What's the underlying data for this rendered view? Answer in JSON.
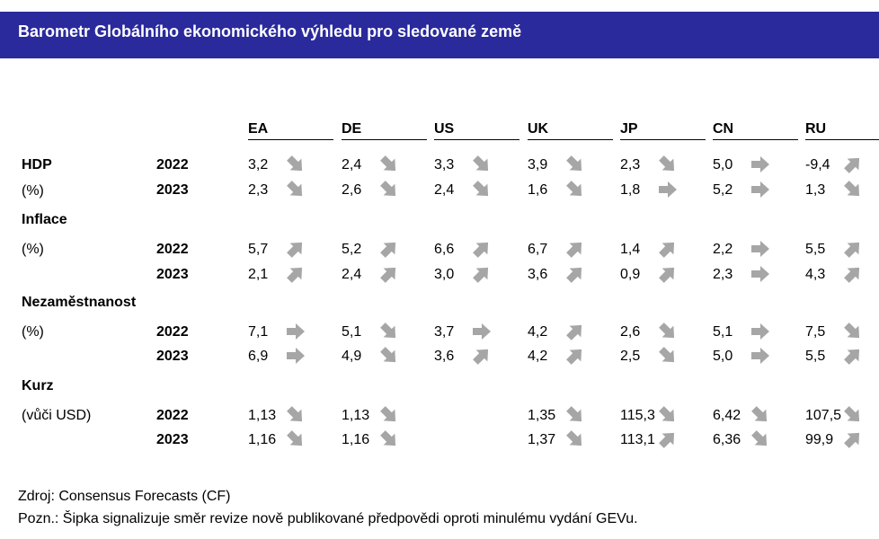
{
  "title": "Barometr Globálního ekonomického výhledu pro sledované země",
  "columns": [
    "EA",
    "DE",
    "US",
    "UK",
    "JP",
    "CN",
    "RU"
  ],
  "sections": [
    {
      "label": "HDP",
      "sub": "(%)",
      "first_row_offset": 0,
      "rows": [
        {
          "year": "2022",
          "cells": [
            {
              "v": "3,2",
              "a": "down"
            },
            {
              "v": "2,4",
              "a": "down"
            },
            {
              "v": "3,3",
              "a": "down"
            },
            {
              "v": "3,9",
              "a": "down"
            },
            {
              "v": "2,3",
              "a": "down"
            },
            {
              "v": "5,0",
              "a": "right"
            },
            {
              "v": "-9,4",
              "a": "up"
            }
          ]
        },
        {
          "year": "2023",
          "cells": [
            {
              "v": "2,3",
              "a": "down"
            },
            {
              "v": "2,6",
              "a": "down"
            },
            {
              "v": "2,4",
              "a": "down"
            },
            {
              "v": "1,6",
              "a": "down"
            },
            {
              "v": "1,8",
              "a": "right"
            },
            {
              "v": "5,2",
              "a": "right"
            },
            {
              "v": "1,3",
              "a": "down"
            }
          ]
        }
      ]
    },
    {
      "label": "Inflace",
      "sub": "(%)",
      "rows": [
        {
          "year": "2022",
          "cells": [
            {
              "v": "5,7",
              "a": "up"
            },
            {
              "v": "5,2",
              "a": "up"
            },
            {
              "v": "6,6",
              "a": "up"
            },
            {
              "v": "6,7",
              "a": "up"
            },
            {
              "v": "1,4",
              "a": "up"
            },
            {
              "v": "2,2",
              "a": "right"
            },
            {
              "v": "5,5",
              "a": "up"
            }
          ]
        },
        {
          "year": "2023",
          "cells": [
            {
              "v": "2,1",
              "a": "up"
            },
            {
              "v": "2,4",
              "a": "up"
            },
            {
              "v": "3,0",
              "a": "up"
            },
            {
              "v": "3,6",
              "a": "up"
            },
            {
              "v": "0,9",
              "a": "up"
            },
            {
              "v": "2,3",
              "a": "right"
            },
            {
              "v": "4,3",
              "a": "up"
            }
          ]
        }
      ]
    },
    {
      "label": "Nezaměstnanost",
      "sub": "(%)",
      "rows": [
        {
          "year": "2022",
          "cells": [
            {
              "v": "7,1",
              "a": "right"
            },
            {
              "v": "5,1",
              "a": "down"
            },
            {
              "v": "3,7",
              "a": "right"
            },
            {
              "v": "4,2",
              "a": "up"
            },
            {
              "v": "2,6",
              "a": "down"
            },
            {
              "v": "5,1",
              "a": "right"
            },
            {
              "v": "7,5",
              "a": "down"
            }
          ]
        },
        {
          "year": "2023",
          "cells": [
            {
              "v": "6,9",
              "a": "right"
            },
            {
              "v": "4,9",
              "a": "down"
            },
            {
              "v": "3,6",
              "a": "up"
            },
            {
              "v": "4,2",
              "a": "up"
            },
            {
              "v": "2,5",
              "a": "down"
            },
            {
              "v": "5,0",
              "a": "right"
            },
            {
              "v": "5,5",
              "a": "up"
            }
          ]
        }
      ]
    },
    {
      "label": "Kurz",
      "sub": "(vůči USD)",
      "rows": [
        {
          "year": "2022",
          "cells": [
            {
              "v": "1,13",
              "a": "down"
            },
            {
              "v": "1,13",
              "a": "down"
            },
            {
              "v": "",
              "a": ""
            },
            {
              "v": "1,35",
              "a": "down"
            },
            {
              "v": "115,3",
              "a": "down"
            },
            {
              "v": "6,42",
              "a": "down"
            },
            {
              "v": "107,5",
              "a": "down"
            }
          ]
        },
        {
          "year": "2023",
          "cells": [
            {
              "v": "1,16",
              "a": "down"
            },
            {
              "v": "1,16",
              "a": "down"
            },
            {
              "v": "",
              "a": ""
            },
            {
              "v": "1,37",
              "a": "down"
            },
            {
              "v": "113,1",
              "a": "up"
            },
            {
              "v": "6,36",
              "a": "down"
            },
            {
              "v": "99,9",
              "a": "up"
            }
          ]
        }
      ]
    }
  ],
  "footer": {
    "source": "Zdroj: Consensus Forecasts (CF)",
    "note": "Pozn.: Šipka signalizuje směr revize nově publikované předpovědi oproti minulému vydání GEVu."
  },
  "colors": {
    "header_bg": "#2a2a9c",
    "arrow": "#a6a6a6"
  }
}
